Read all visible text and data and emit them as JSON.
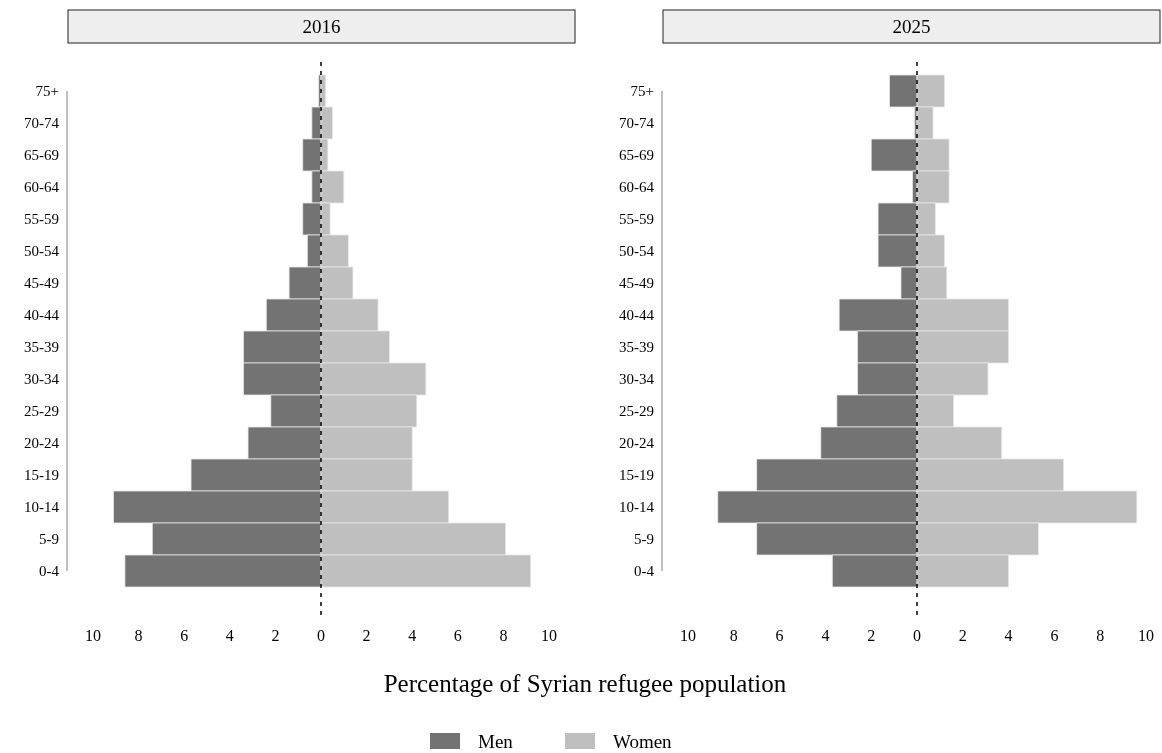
{
  "chart_data": [
    {
      "type": "bar",
      "orientation": "horizontal",
      "title": "2016",
      "xlabel": "Percentage of Syrian refugee population",
      "legend": "bottom",
      "categories": [
        "75+",
        "70-74",
        "65-69",
        "60-64",
        "55-59",
        "50-54",
        "45-49",
        "40-44",
        "35-39",
        "30-34",
        "25-29",
        "20-24",
        "15-19",
        "10-14",
        "5-9",
        "0-4"
      ],
      "series": [
        {
          "name": "Men",
          "color": "#737373",
          "values": [
            -0.1,
            -0.4,
            -0.8,
            -0.4,
            -0.8,
            -0.6,
            -1.4,
            -2.4,
            -3.4,
            -3.4,
            -2.2,
            -3.2,
            -5.7,
            -9.1,
            -7.4,
            -8.6
          ]
        },
        {
          "name": "Women",
          "color": "#bfbfbf",
          "values": [
            0.2,
            0.5,
            0.3,
            1.0,
            0.4,
            1.2,
            1.4,
            2.5,
            3.0,
            4.6,
            4.2,
            4.0,
            4.0,
            5.6,
            8.1,
            9.2
          ]
        }
      ],
      "xlim": [
        -10,
        10
      ],
      "stacked": true,
      "xticks": [
        {
          "value": -10,
          "label": "10"
        },
        {
          "value": -8,
          "label": "8"
        },
        {
          "value": -6,
          "label": "6"
        },
        {
          "value": -4,
          "label": "4"
        },
        {
          "value": -2,
          "label": "2"
        },
        0,
        2,
        4,
        6,
        8,
        10
      ],
      "ref_lines": [
        {
          "axis": "x",
          "value": 0,
          "line_style": "dashed"
        }
      ]
    },
    {
      "type": "bar",
      "orientation": "horizontal",
      "title": "2025",
      "categories": [
        "75+",
        "70-74",
        "65-69",
        "60-64",
        "55-59",
        "50-54",
        "45-49",
        "40-44",
        "35-39",
        "30-34",
        "25-29",
        "20-24",
        "15-19",
        "10-14",
        "5-9",
        "0-4"
      ],
      "series": [
        {
          "color": "#737373",
          "values": [
            -1.2,
            -0.1,
            -2.0,
            -0.2,
            -1.7,
            -1.7,
            -0.7,
            -3.4,
            -2.6,
            -2.6,
            -3.5,
            -4.2,
            -7.0,
            -8.7,
            -7.0,
            -3.7
          ]
        },
        {
          "color": "#bfbfbf",
          "values": [
            1.2,
            0.7,
            1.4,
            1.4,
            0.8,
            1.2,
            1.3,
            4.0,
            4.0,
            3.1,
            1.6,
            3.7,
            6.4,
            9.6,
            5.3,
            4.0
          ]
        }
      ],
      "xlim": [
        -10,
        10
      ],
      "stacked": true,
      "xticks": [
        {
          "value": -10,
          "label": "10"
        },
        {
          "value": -8,
          "label": "8"
        },
        {
          "value": -6,
          "label": "6"
        },
        {
          "value": -4,
          "label": "4"
        },
        {
          "value": -2,
          "label": "2"
        },
        0,
        2,
        4,
        6,
        8,
        10
      ],
      "ref_lines": [
        {
          "axis": "x",
          "value": 0,
          "line_style": "dashed"
        }
      ]
    }
  ]
}
